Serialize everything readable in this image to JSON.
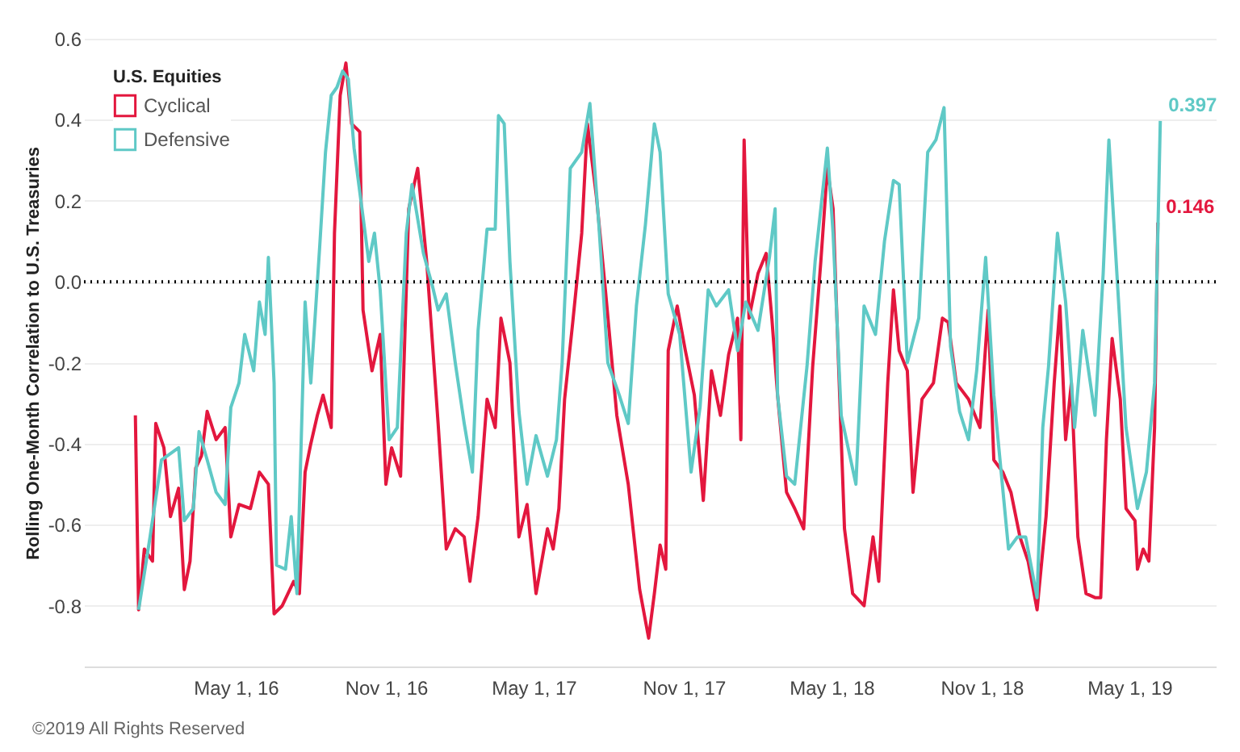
{
  "chart_data": {
    "type": "line",
    "ylabel": "Rolling One-Month Correlation to U.S. Treasuries",
    "legend_title": "U.S. Equities",
    "legend": "top left",
    "grid": "y",
    "xlim": [
      "2015-10-28",
      "2019-08-15"
    ],
    "xticks": [
      {
        "value": "2016-05-01",
        "label": "May 1, 16"
      },
      {
        "value": "2016-11-01",
        "label": "Nov 1, 16"
      },
      {
        "value": "2017-05-01",
        "label": "May 1, 17"
      },
      {
        "value": "2017-11-01",
        "label": "Nov 1, 17"
      },
      {
        "value": "2018-05-01",
        "label": "May 1, 18"
      },
      {
        "value": "2018-11-01",
        "label": "Nov 1, 18"
      },
      {
        "value": "2019-05-01",
        "label": "May 1, 19"
      }
    ],
    "ylim": [
      -0.95,
      0.6
    ],
    "yticks": [
      0.6,
      0.4,
      0.2,
      {
        "value": 0,
        "label": "0.0"
      },
      -0.2,
      -0.4,
      -0.6,
      -0.8
    ],
    "ref_lines": [
      {
        "axis": "y",
        "value": 0,
        "line_style": "dotted",
        "color": "#000000"
      }
    ],
    "annotations": [
      "©2019 All Rights Reserved"
    ],
    "series": [
      {
        "name": "Cyclical",
        "color": "#e3173e",
        "x": [
          "2015-12-30",
          "2016-01-03",
          "2016-01-10",
          "2016-01-20",
          "2016-01-24",
          "2016-02-03",
          "2016-02-11",
          "2016-02-21",
          "2016-02-28",
          "2016-03-06",
          "2016-03-13",
          "2016-03-20",
          "2016-03-27",
          "2016-04-07",
          "2016-04-18",
          "2016-04-25",
          "2016-05-05",
          "2016-05-19",
          "2016-05-30",
          "2016-06-10",
          "2016-06-17",
          "2016-06-27",
          "2016-07-11",
          "2016-07-18",
          "2016-07-25",
          "2016-08-01",
          "2016-08-09",
          "2016-08-16",
          "2016-08-26",
          "2016-08-30",
          "2016-09-06",
          "2016-09-13",
          "2016-09-20",
          "2016-09-30",
          "2016-10-04",
          "2016-10-15",
          "2016-10-25",
          "2016-11-01",
          "2016-11-08",
          "2016-11-19",
          "2016-11-29",
          "2016-12-10",
          "2016-12-21",
          "2017-01-04",
          "2017-01-14",
          "2017-01-25",
          "2017-02-05",
          "2017-02-12",
          "2017-02-22",
          "2017-03-05",
          "2017-03-15",
          "2017-03-22",
          "2017-04-02",
          "2017-04-13",
          "2017-04-23",
          "2017-05-04",
          "2017-05-18",
          "2017-05-25",
          "2017-06-01",
          "2017-06-08",
          "2017-06-18",
          "2017-06-29",
          "2017-07-06",
          "2017-07-17",
          "2017-07-28",
          "2017-08-11",
          "2017-08-25",
          "2017-09-08",
          "2017-09-19",
          "2017-09-26",
          "2017-10-03",
          "2017-10-10",
          "2017-10-13",
          "2017-10-24",
          "2017-11-03",
          "2017-11-14",
          "2017-11-25",
          "2017-12-05",
          "2017-12-16",
          "2017-12-26",
          "2018-01-06",
          "2018-01-10",
          "2018-01-14",
          "2018-01-20",
          "2018-01-31",
          "2018-02-10",
          "2018-02-17",
          "2018-02-24",
          "2018-03-07",
          "2018-03-17",
          "2018-03-28",
          "2018-04-08",
          "2018-04-18",
          "2018-04-26",
          "2018-05-03",
          "2018-05-10",
          "2018-05-17",
          "2018-05-27",
          "2018-06-10",
          "2018-06-21",
          "2018-06-28",
          "2018-07-09",
          "2018-07-16",
          "2018-07-23",
          "2018-08-02",
          "2018-08-09",
          "2018-08-20",
          "2018-09-03",
          "2018-09-14",
          "2018-09-21",
          "2018-10-01",
          "2018-10-16",
          "2018-10-30",
          "2018-11-09",
          "2018-11-16",
          "2018-11-27",
          "2018-12-07",
          "2018-12-18",
          "2018-12-28",
          "2019-01-08",
          "2019-01-19",
          "2019-01-29",
          "2019-02-05",
          "2019-02-12",
          "2019-02-19",
          "2019-02-27",
          "2019-03-09",
          "2019-03-20",
          "2019-03-27",
          "2019-04-03",
          "2019-04-10",
          "2019-04-20",
          "2019-04-27",
          "2019-05-08",
          "2019-05-11",
          "2019-05-18",
          "2019-05-25",
          "2019-06-01",
          "2019-06-05"
        ],
        "values": [
          -0.33,
          -0.81,
          -0.66,
          -0.69,
          -0.35,
          -0.41,
          -0.58,
          -0.51,
          -0.76,
          -0.69,
          -0.46,
          -0.43,
          -0.32,
          -0.39,
          -0.36,
          -0.63,
          -0.55,
          -0.56,
          -0.47,
          -0.5,
          -0.82,
          -0.8,
          -0.74,
          -0.77,
          -0.47,
          -0.4,
          -0.33,
          -0.28,
          -0.36,
          0.12,
          0.46,
          0.54,
          0.39,
          0.37,
          -0.07,
          -0.22,
          -0.13,
          -0.5,
          -0.41,
          -0.48,
          0.18,
          0.28,
          0.05,
          -0.35,
          -0.66,
          -0.61,
          -0.63,
          -0.74,
          -0.58,
          -0.29,
          -0.36,
          -0.09,
          -0.2,
          -0.63,
          -0.55,
          -0.77,
          -0.61,
          -0.66,
          -0.56,
          -0.29,
          -0.1,
          0.12,
          0.39,
          0.21,
          -0.02,
          -0.33,
          -0.5,
          -0.76,
          -0.88,
          -0.77,
          -0.65,
          -0.71,
          -0.17,
          -0.06,
          -0.17,
          -0.28,
          -0.54,
          -0.22,
          -0.33,
          -0.18,
          -0.09,
          -0.39,
          0.35,
          -0.09,
          0.02,
          0.07,
          -0.09,
          -0.28,
          -0.52,
          -0.56,
          -0.61,
          -0.21,
          0.05,
          0.28,
          0.18,
          -0.22,
          -0.61,
          -0.77,
          -0.8,
          -0.63,
          -0.74,
          -0.25,
          -0.02,
          -0.17,
          -0.22,
          -0.52,
          -0.29,
          -0.25,
          -0.09,
          -0.1,
          -0.25,
          -0.29,
          -0.36,
          -0.07,
          -0.44,
          -0.47,
          -0.52,
          -0.63,
          -0.69,
          -0.81,
          -0.58,
          -0.25,
          -0.06,
          -0.39,
          -0.25,
          -0.63,
          -0.77,
          -0.78,
          -0.78,
          -0.39,
          -0.14,
          -0.29,
          -0.56,
          -0.59,
          -0.71,
          -0.66,
          -0.69,
          -0.36,
          0.146
        ],
        "value_labels": [
          null,
          null,
          null,
          null,
          null,
          null,
          null,
          null,
          null,
          null,
          null,
          null,
          null,
          null,
          null,
          null,
          null,
          null,
          null,
          null,
          null,
          null,
          null,
          null,
          null,
          null,
          null,
          null,
          null,
          null,
          null,
          null,
          null,
          null,
          null,
          null,
          null,
          null,
          null,
          null,
          null,
          null,
          null,
          null,
          null,
          null,
          null,
          null,
          null,
          null,
          null,
          null,
          null,
          null,
          null,
          null,
          null,
          null,
          null,
          null,
          null,
          null,
          null,
          null,
          null,
          null,
          null,
          null,
          null,
          null,
          null,
          null,
          null,
          null,
          null,
          null,
          null,
          null,
          null,
          null,
          null,
          null,
          null,
          null,
          null,
          null,
          null,
          null,
          null,
          null,
          null,
          null,
          null,
          null,
          null,
          null,
          null,
          null,
          null,
          null,
          null,
          null,
          null,
          null,
          null,
          null,
          null,
          null,
          null,
          null,
          null,
          null,
          null,
          null,
          null,
          null,
          null,
          null,
          null,
          null,
          null,
          null,
          null,
          null,
          null,
          null,
          null,
          null,
          null,
          null,
          null,
          null,
          null,
          null,
          null,
          null,
          null,
          null,
          "0.146"
        ]
      },
      {
        "name": "Defensive",
        "color": "#5fc9c6",
        "x": [
          "2016-01-03",
          "2016-01-17",
          "2016-01-31",
          "2016-02-21",
          "2016-02-28",
          "2016-03-10",
          "2016-03-17",
          "2016-03-27",
          "2016-04-07",
          "2016-04-18",
          "2016-04-25",
          "2016-05-05",
          "2016-05-12",
          "2016-05-23",
          "2016-05-30",
          "2016-06-06",
          "2016-06-10",
          "2016-06-17",
          "2016-06-20",
          "2016-07-01",
          "2016-07-08",
          "2016-07-15",
          "2016-07-25",
          "2016-08-01",
          "2016-08-12",
          "2016-08-19",
          "2016-08-26",
          "2016-09-02",
          "2016-09-09",
          "2016-09-16",
          "2016-09-23",
          "2016-10-04",
          "2016-10-11",
          "2016-10-18",
          "2016-10-25",
          "2016-11-05",
          "2016-11-15",
          "2016-11-26",
          "2016-12-03",
          "2016-12-17",
          "2016-12-28",
          "2017-01-04",
          "2017-01-14",
          "2017-01-25",
          "2017-02-05",
          "2017-02-15",
          "2017-02-22",
          "2017-03-05",
          "2017-03-15",
          "2017-03-19",
          "2017-03-26",
          "2017-04-02",
          "2017-04-13",
          "2017-04-23",
          "2017-05-04",
          "2017-05-18",
          "2017-05-29",
          "2017-06-05",
          "2017-06-15",
          "2017-06-29",
          "2017-07-09",
          "2017-07-20",
          "2017-07-31",
          "2017-08-14",
          "2017-08-25",
          "2017-09-04",
          "2017-09-15",
          "2017-09-26",
          "2017-10-03",
          "2017-10-13",
          "2017-10-27",
          "2017-11-10",
          "2017-11-21",
          "2017-12-01",
          "2017-12-11",
          "2017-12-26",
          "2018-01-06",
          "2018-01-16",
          "2018-01-31",
          "2018-02-14",
          "2018-02-21",
          "2018-02-24",
          "2018-03-07",
          "2018-03-17",
          "2018-04-01",
          "2018-04-11",
          "2018-04-26",
          "2018-05-03",
          "2018-05-13",
          "2018-05-31",
          "2018-06-10",
          "2018-06-24",
          "2018-07-05",
          "2018-07-16",
          "2018-07-23",
          "2018-08-02",
          "2018-08-16",
          "2018-08-27",
          "2018-09-06",
          "2018-09-16",
          "2018-09-24",
          "2018-10-05",
          "2018-10-16",
          "2018-10-26",
          "2018-11-06",
          "2018-11-16",
          "2018-12-04",
          "2018-12-15",
          "2018-12-25",
          "2019-01-08",
          "2019-01-15",
          "2019-01-22",
          "2019-02-02",
          "2019-02-12",
          "2019-02-23",
          "2019-03-05",
          "2019-03-20",
          "2019-03-30",
          "2019-04-06",
          "2019-04-17",
          "2019-04-27",
          "2019-05-11",
          "2019-05-22",
          "2019-06-01",
          "2019-06-08"
        ],
        "values": [
          -0.81,
          -0.63,
          -0.44,
          -0.41,
          -0.59,
          -0.56,
          -0.37,
          -0.44,
          -0.52,
          -0.55,
          -0.31,
          -0.25,
          -0.13,
          -0.22,
          -0.05,
          -0.13,
          0.06,
          -0.25,
          -0.7,
          -0.71,
          -0.58,
          -0.77,
          -0.05,
          -0.25,
          0.09,
          0.32,
          0.46,
          0.48,
          0.52,
          0.5,
          0.33,
          0.16,
          0.05,
          0.12,
          -0.02,
          -0.39,
          -0.36,
          0.12,
          0.24,
          0.07,
          -0.01,
          -0.07,
          -0.03,
          -0.2,
          -0.35,
          -0.47,
          -0.12,
          0.13,
          0.13,
          0.41,
          0.39,
          0.05,
          -0.32,
          -0.5,
          -0.38,
          -0.48,
          -0.39,
          -0.2,
          0.28,
          0.32,
          0.44,
          0.14,
          -0.2,
          -0.28,
          -0.35,
          -0.06,
          0.14,
          0.39,
          0.32,
          -0.03,
          -0.13,
          -0.47,
          -0.31,
          -0.02,
          -0.06,
          -0.02,
          -0.17,
          -0.05,
          -0.12,
          0.06,
          0.18,
          -0.28,
          -0.48,
          -0.5,
          -0.21,
          0.05,
          0.33,
          0.12,
          -0.33,
          -0.5,
          -0.06,
          -0.13,
          0.1,
          0.25,
          0.24,
          -0.2,
          -0.09,
          0.32,
          0.35,
          0.43,
          -0.16,
          -0.32,
          -0.39,
          -0.22,
          0.06,
          -0.28,
          -0.66,
          -0.63,
          -0.63,
          -0.78,
          -0.36,
          -0.21,
          0.12,
          -0.05,
          -0.36,
          -0.12,
          -0.33,
          0.02,
          0.35,
          -0.02,
          -0.36,
          -0.56,
          -0.47,
          -0.25,
          0.397
        ],
        "value_labels": [
          null,
          null,
          null,
          null,
          null,
          null,
          null,
          null,
          null,
          null,
          null,
          null,
          null,
          null,
          null,
          null,
          null,
          null,
          null,
          null,
          null,
          null,
          null,
          null,
          null,
          null,
          null,
          null,
          null,
          null,
          null,
          null,
          null,
          null,
          null,
          null,
          null,
          null,
          null,
          null,
          null,
          null,
          null,
          null,
          null,
          null,
          null,
          null,
          null,
          null,
          null,
          null,
          null,
          null,
          null,
          null,
          null,
          null,
          null,
          null,
          null,
          null,
          null,
          null,
          null,
          null,
          null,
          null,
          null,
          null,
          null,
          null,
          null,
          null,
          null,
          null,
          null,
          null,
          null,
          null,
          null,
          null,
          null,
          null,
          null,
          null,
          null,
          null,
          null,
          null,
          null,
          null,
          null,
          null,
          null,
          null,
          null,
          null,
          null,
          null,
          null,
          null,
          null,
          null,
          null,
          null,
          null,
          null,
          null,
          null,
          null,
          null,
          null,
          null,
          null,
          null,
          null,
          null,
          null,
          null,
          null,
          null,
          null,
          null,
          "0.397"
        ]
      }
    ]
  }
}
